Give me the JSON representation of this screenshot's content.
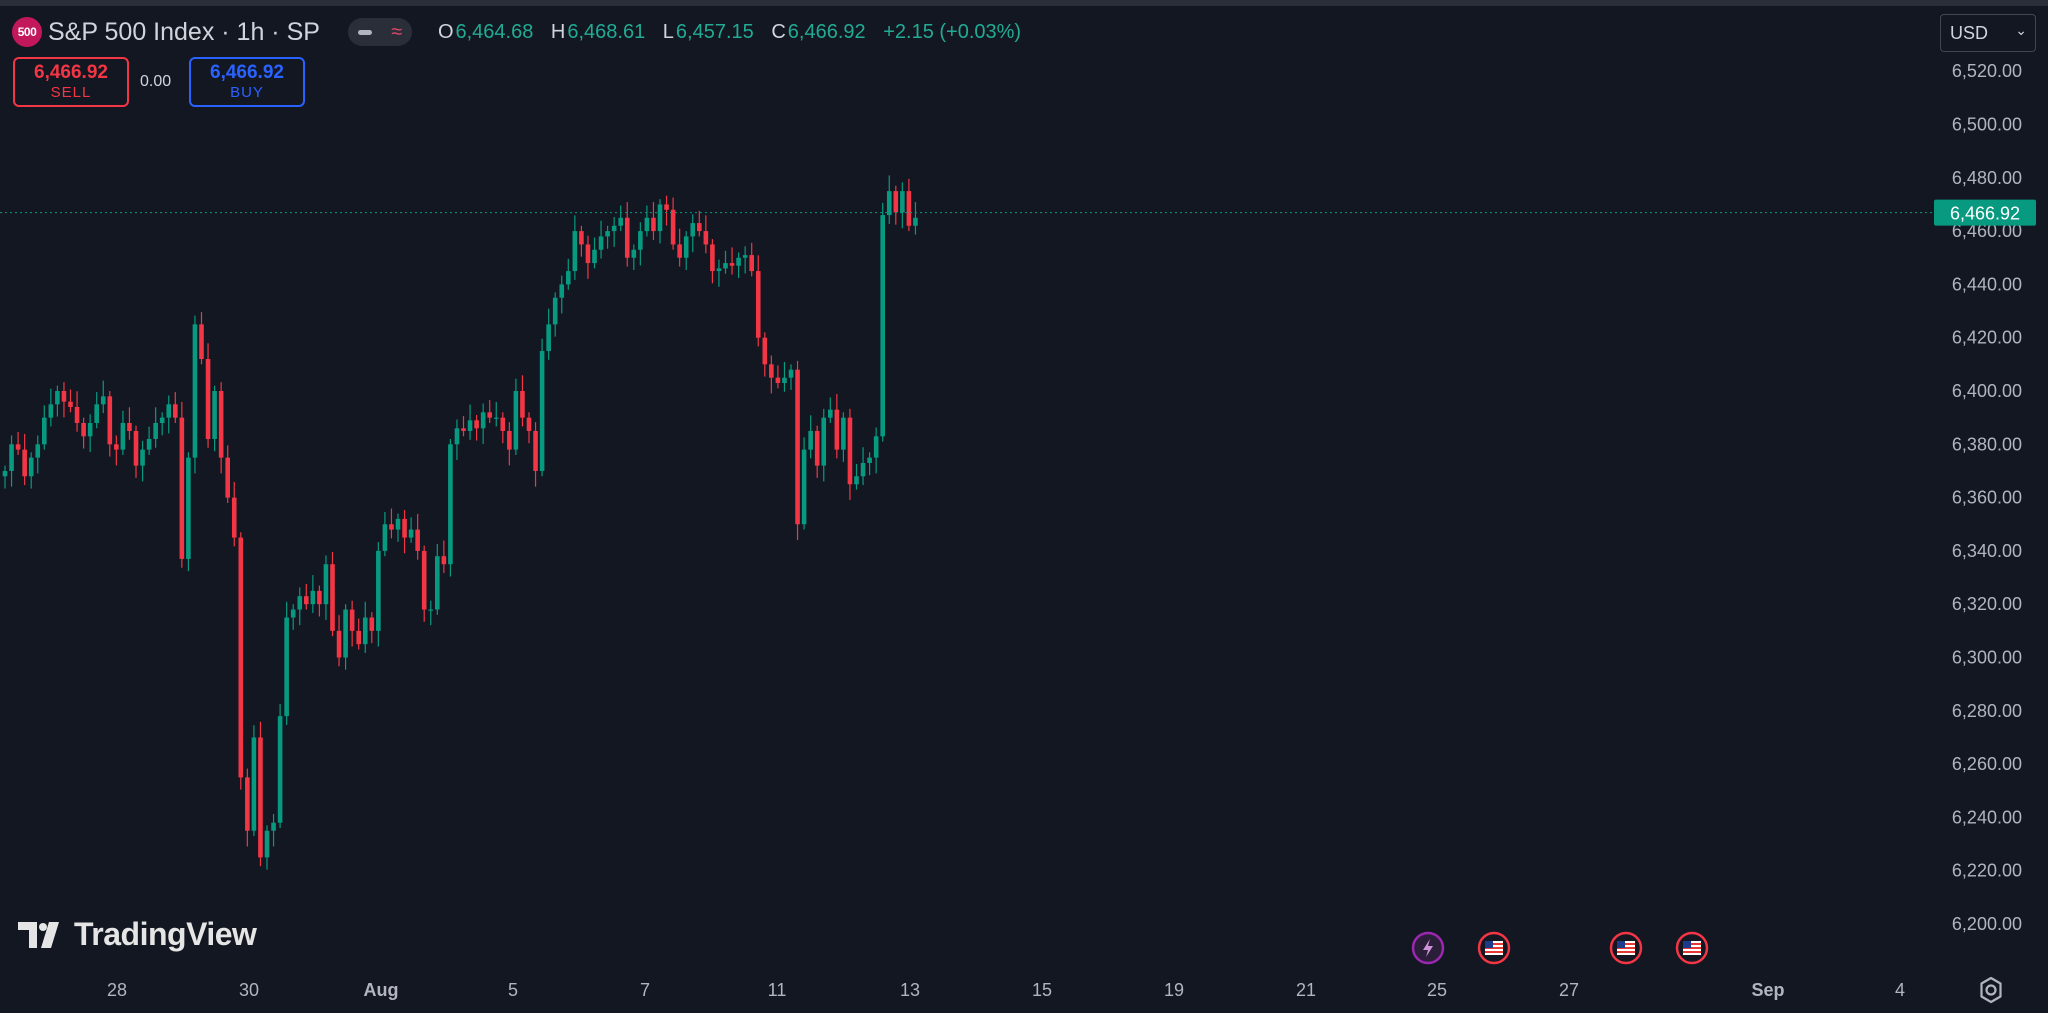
{
  "header": {
    "logo_text": "500",
    "title": "S&P 500 Index · 1h · SP",
    "ohlc": [
      {
        "label": "O",
        "value": "6,464.68"
      },
      {
        "label": "H",
        "value": "6,468.61"
      },
      {
        "label": "L",
        "value": "6,457.15"
      },
      {
        "label": "C",
        "value": "6,466.92"
      }
    ],
    "change": "+2.15 (+0.03%)"
  },
  "trade": {
    "sell_price": "6,466.92",
    "sell_label": "SELL",
    "spread": "0.00",
    "buy_price": "6,466.92",
    "buy_label": "BUY"
  },
  "currency": {
    "value": "USD"
  },
  "branding": {
    "name": "TradingView"
  },
  "colors": {
    "up": "#089981",
    "down": "#f23645",
    "background": "#131722",
    "price_tag": "#089981"
  },
  "icons": [
    "flash-icon",
    "us-flag-icon",
    "us-flag-icon",
    "us-flag-icon",
    "settings-gear-icon"
  ],
  "chart_data": {
    "type": "candlestick",
    "interval": "1h",
    "ylim": [
      6190,
      6530
    ],
    "y_ticks": [
      "6,200.00",
      "6,220.00",
      "6,240.00",
      "6,260.00",
      "6,280.00",
      "6,300.00",
      "6,320.00",
      "6,340.00",
      "6,360.00",
      "6,380.00",
      "6,400.00",
      "6,420.00",
      "6,440.00",
      "6,460.00",
      "6,480.00",
      "6,500.00",
      "6,520.00"
    ],
    "x_ticks": [
      {
        "label": "28",
        "bold": false
      },
      {
        "label": "30",
        "bold": false
      },
      {
        "label": "Aug",
        "bold": true
      },
      {
        "label": "5",
        "bold": false
      },
      {
        "label": "7",
        "bold": false
      },
      {
        "label": "11",
        "bold": false
      },
      {
        "label": "13",
        "bold": false
      },
      {
        "label": "15",
        "bold": false
      },
      {
        "label": "19",
        "bold": false
      },
      {
        "label": "21",
        "bold": false
      },
      {
        "label": "25",
        "bold": false
      },
      {
        "label": "27",
        "bold": false
      },
      {
        "label": "Sep",
        "bold": true
      },
      {
        "label": "4",
        "bold": false
      }
    ],
    "last_price": 6466.92,
    "last_price_label": "6,466.92",
    "closes": [
      6370,
      6380,
      6378,
      6368,
      6375,
      6380,
      6390,
      6395,
      6400,
      6396,
      6394,
      6388,
      6383,
      6388,
      6395,
      6398,
      6380,
      6378,
      6388,
      6385,
      6372,
      6378,
      6382,
      6388,
      6390,
      6395,
      6390,
      6337,
      6375,
      6425,
      6412,
      6382,
      6400,
      6375,
      6360,
      6345,
      6255,
      6235,
      6270,
      6225,
      6235,
      6238,
      6278,
      6315,
      6318,
      6323,
      6320,
      6325,
      6320,
      6335,
      6310,
      6300,
      6318,
      6310,
      6305,
      6315,
      6310,
      6340,
      6350,
      6348,
      6352,
      6345,
      6348,
      6340,
      6318,
      6318,
      6338,
      6335,
      6380,
      6386,
      6385,
      6389,
      6386,
      6392,
      6390,
      6390,
      6385,
      6378,
      6400,
      6390,
      6385,
      6370,
      6415,
      6425,
      6435,
      6440,
      6445,
      6460,
      6455,
      6448,
      6453,
      6458,
      6460,
      6462,
      6465,
      6450,
      6453,
      6460,
      6465,
      6460,
      6470,
      6468,
      6455,
      6450,
      6458,
      6463,
      6460,
      6455,
      6445,
      6446,
      6448,
      6447,
      6450,
      6451,
      6445,
      6420,
      6410,
      6405,
      6403,
      6405,
      6408,
      6350,
      6378,
      6385,
      6372,
      6390,
      6393,
      6378,
      6390,
      6365,
      6368,
      6373,
      6375,
      6383,
      6466,
      6475,
      6467,
      6475,
      6462,
      6465
    ]
  }
}
